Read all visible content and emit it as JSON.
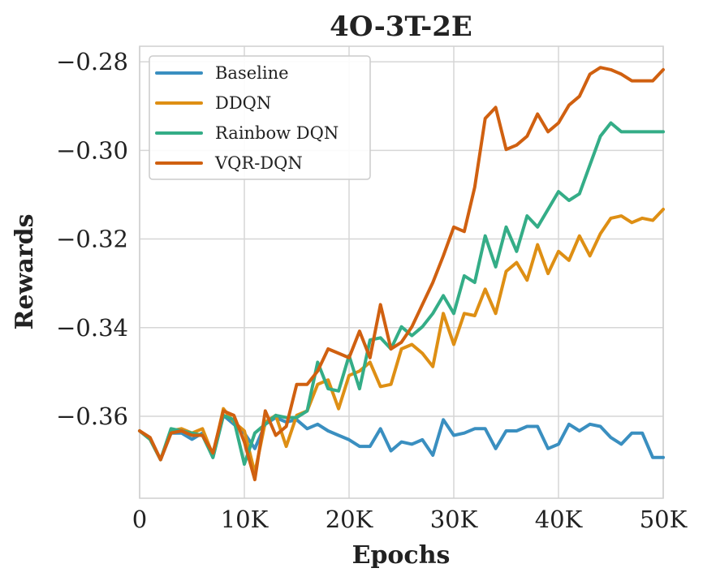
{
  "chart_data": {
    "type": "line",
    "title": "4O-3T-2E",
    "xlabel": "Epochs",
    "ylabel": "Rewards",
    "xlim": [
      0,
      50000
    ],
    "ylim": [
      -0.3785,
      -0.2765
    ],
    "xticks": [
      0,
      10000,
      20000,
      30000,
      40000,
      50000
    ],
    "xtick_labels": [
      "0",
      "10K",
      "20K",
      "30K",
      "40K",
      "50K"
    ],
    "yticks": [
      -0.36,
      -0.34,
      -0.32,
      -0.3,
      -0.28
    ],
    "ytick_labels": [
      "−0.36",
      "−0.34",
      "−0.32",
      "−0.30",
      "−0.28"
    ],
    "grid": true,
    "legend_position": "top-left",
    "x": [
      0,
      1000,
      2000,
      3000,
      4000,
      5000,
      6000,
      7000,
      8000,
      9000,
      10000,
      11000,
      12000,
      13000,
      14000,
      15000,
      16000,
      17000,
      18000,
      19000,
      20000,
      21000,
      22000,
      23000,
      24000,
      25000,
      26000,
      27000,
      28000,
      29000,
      30000,
      31000,
      32000,
      33000,
      34000,
      35000,
      36000,
      37000,
      38000,
      39000,
      40000,
      41000,
      42000,
      43000,
      44000,
      45000,
      46000,
      47000,
      48000,
      49000,
      50000
    ],
    "series": [
      {
        "name": "Baseline",
        "color": "#3a8fc0",
        "values": [
          -0.3633,
          -0.3652,
          -0.3698,
          -0.3638,
          -0.3638,
          -0.3652,
          -0.3638,
          -0.3693,
          -0.3598,
          -0.3618,
          -0.3638,
          -0.3673,
          -0.3618,
          -0.3603,
          -0.3613,
          -0.3608,
          -0.3628,
          -0.3618,
          -0.3633,
          -0.3643,
          -0.3653,
          -0.3668,
          -0.3668,
          -0.3628,
          -0.3678,
          -0.3658,
          -0.3663,
          -0.3653,
          -0.3688,
          -0.3608,
          -0.3643,
          -0.3638,
          -0.3628,
          -0.3628,
          -0.3673,
          -0.3633,
          -0.3633,
          -0.3623,
          -0.3623,
          -0.3673,
          -0.3663,
          -0.3618,
          -0.3633,
          -0.3618,
          -0.3623,
          -0.3648,
          -0.3663,
          -0.3638,
          -0.3638,
          -0.3693,
          -0.3693
        ]
      },
      {
        "name": "DDQN",
        "color": "#de8f14",
        "values": [
          -0.3633,
          -0.3652,
          -0.3698,
          -0.3633,
          -0.3628,
          -0.3638,
          -0.3628,
          -0.3688,
          -0.3583,
          -0.3613,
          -0.3633,
          -0.3728,
          -0.3613,
          -0.3598,
          -0.3668,
          -0.3598,
          -0.3588,
          -0.3528,
          -0.3518,
          -0.3583,
          -0.3508,
          -0.3498,
          -0.3478,
          -0.3533,
          -0.3528,
          -0.3448,
          -0.3438,
          -0.3458,
          -0.3488,
          -0.3368,
          -0.3438,
          -0.3368,
          -0.3373,
          -0.3313,
          -0.3368,
          -0.3273,
          -0.3253,
          -0.3293,
          -0.3213,
          -0.3278,
          -0.3228,
          -0.3248,
          -0.3193,
          -0.3238,
          -0.3188,
          -0.3153,
          -0.3148,
          -0.3163,
          -0.3153,
          -0.3158,
          -0.3133
        ]
      },
      {
        "name": "Rainbow DQN",
        "color": "#34ad87",
        "values": [
          -0.3633,
          -0.3652,
          -0.3698,
          -0.3628,
          -0.3633,
          -0.3638,
          -0.3643,
          -0.3693,
          -0.3598,
          -0.3608,
          -0.3708,
          -0.3638,
          -0.3618,
          -0.3598,
          -0.3603,
          -0.3603,
          -0.3588,
          -0.3478,
          -0.3538,
          -0.3543,
          -0.3463,
          -0.3538,
          -0.3428,
          -0.3423,
          -0.3448,
          -0.3398,
          -0.3418,
          -0.3398,
          -0.3368,
          -0.3328,
          -0.3368,
          -0.3283,
          -0.3298,
          -0.3193,
          -0.3263,
          -0.3173,
          -0.3228,
          -0.3148,
          -0.3173,
          -0.3133,
          -0.3093,
          -0.3113,
          -0.3098,
          -0.3033,
          -0.2968,
          -0.2938,
          -0.2958,
          -0.2958,
          -0.2958,
          -0.2958,
          -0.2958
        ]
      },
      {
        "name": "VQR-DQN",
        "color": "#d06010",
        "values": [
          -0.3633,
          -0.3648,
          -0.3698,
          -0.3638,
          -0.3633,
          -0.3643,
          -0.3643,
          -0.3683,
          -0.3588,
          -0.3598,
          -0.3658,
          -0.3743,
          -0.3588,
          -0.3643,
          -0.3623,
          -0.3528,
          -0.3528,
          -0.3498,
          -0.3448,
          -0.3458,
          -0.3468,
          -0.3408,
          -0.3468,
          -0.3348,
          -0.3448,
          -0.3433,
          -0.3398,
          -0.3348,
          -0.3298,
          -0.3238,
          -0.3173,
          -0.3183,
          -0.3083,
          -0.2928,
          -0.2903,
          -0.2998,
          -0.2988,
          -0.2968,
          -0.2918,
          -0.2958,
          -0.2938,
          -0.2898,
          -0.2878,
          -0.2828,
          -0.2813,
          -0.2818,
          -0.2828,
          -0.2843,
          -0.2843,
          -0.2843,
          -0.2818
        ]
      }
    ]
  }
}
